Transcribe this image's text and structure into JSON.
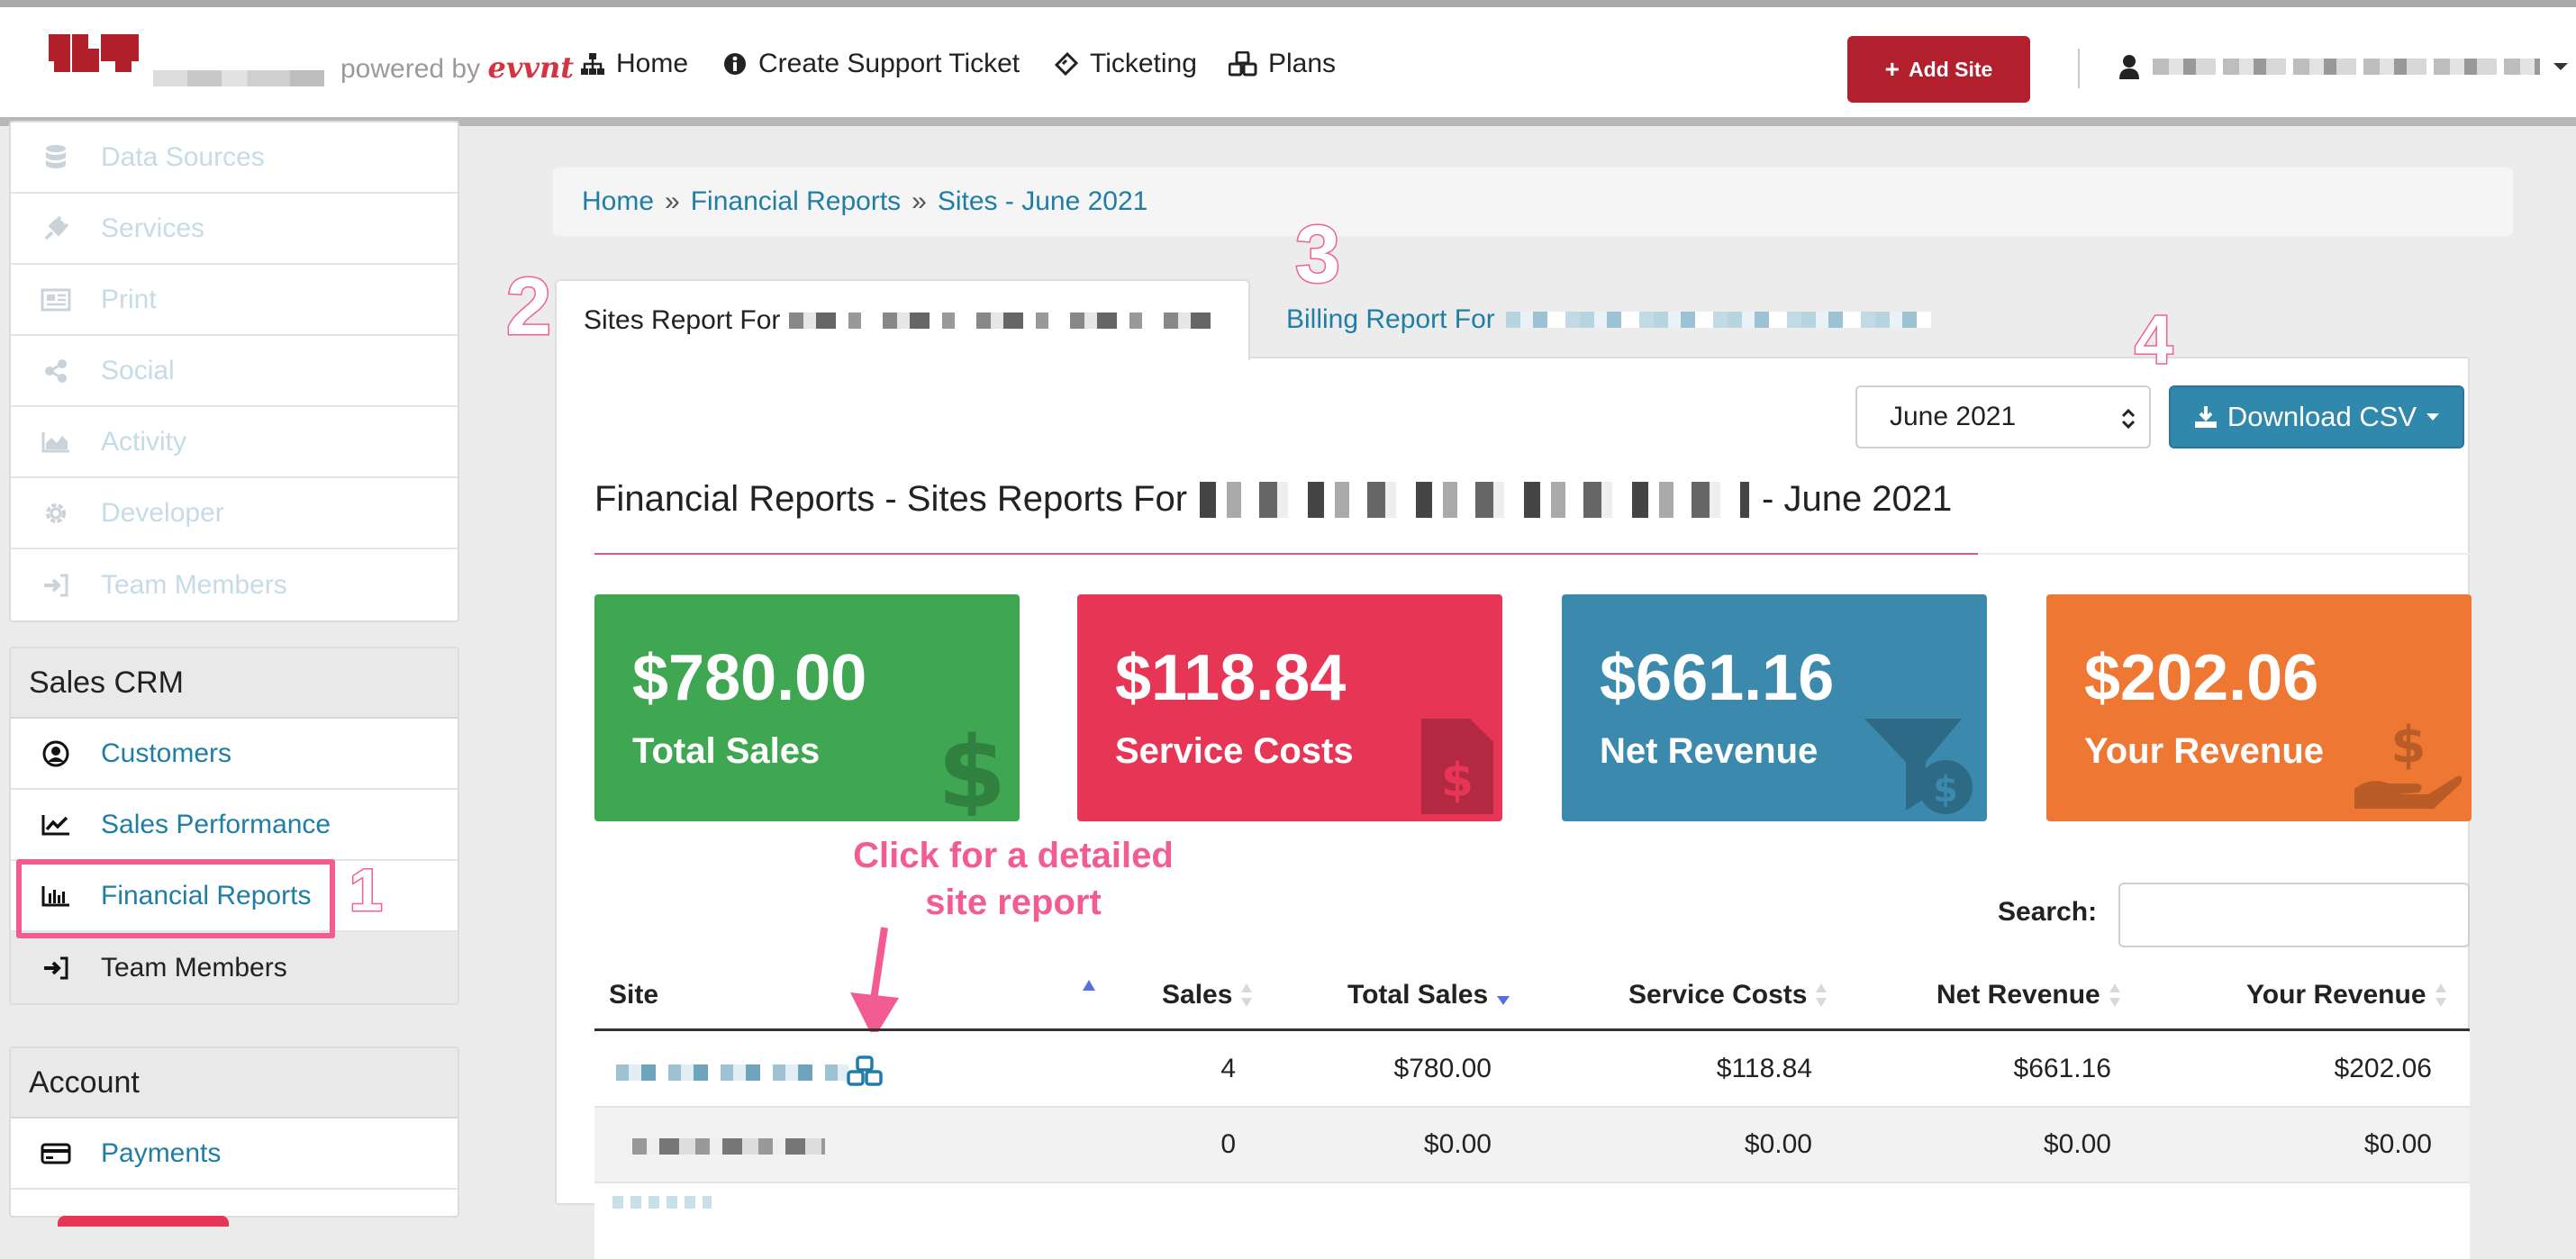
{
  "navbar": {
    "powered_prefix": "powered by",
    "powered_brand": "evvnt",
    "links": [
      {
        "label": "Home",
        "icon": "sitemap-icon"
      },
      {
        "label": "Create Support Ticket",
        "icon": "info-circle-icon"
      },
      {
        "label": "Ticketing",
        "icon": "ticket-icon"
      },
      {
        "label": "Plans",
        "icon": "cubes-icon"
      }
    ],
    "add_site_label": "Add Site",
    "accent": "#b3202d"
  },
  "sidebar": {
    "top_items": [
      {
        "label": "Data Sources",
        "icon": "database-icon"
      },
      {
        "label": "Services",
        "icon": "plug-icon"
      },
      {
        "label": "Print",
        "icon": "newspaper-icon"
      },
      {
        "label": "Social",
        "icon": "share-icon"
      },
      {
        "label": "Activity",
        "icon": "area-chart-icon"
      },
      {
        "label": "Developer",
        "icon": "gear-icon"
      },
      {
        "label": "Team Members",
        "icon": "sign-in-icon"
      }
    ],
    "sales_crm": {
      "heading": "Sales CRM",
      "items": [
        {
          "label": "Customers",
          "icon": "user-circle-icon"
        },
        {
          "label": "Sales Performance",
          "icon": "line-chart-icon"
        },
        {
          "label": "Financial Reports",
          "icon": "bar-chart-icon"
        },
        {
          "label": "Team Members",
          "icon": "sign-in-icon"
        }
      ]
    },
    "account": {
      "heading": "Account",
      "items": [
        {
          "label": "Payments",
          "icon": "credit-card-icon"
        }
      ]
    }
  },
  "annotations": {
    "step1": "1",
    "step2": "2",
    "step3": "3",
    "step4": "4",
    "hint_line1": "Click for a detailed",
    "hint_line2": "site report"
  },
  "breadcrumb": {
    "home": "Home",
    "sep": "»",
    "financial": "Financial Reports",
    "current": "Sites - June 2021"
  },
  "tabs": {
    "sites_prefix": "Sites Report For",
    "billing_prefix": "Billing Report For"
  },
  "controls": {
    "month_selected": "June 2021",
    "download_label": "Download CSV"
  },
  "report": {
    "title_prefix": "Financial Reports - Sites Reports For",
    "title_suffix": "- June 2021"
  },
  "cards": [
    {
      "amount": "$780.00",
      "label": "Total Sales",
      "color": "#3fa652",
      "icon": "dollar-icon"
    },
    {
      "amount": "$118.84",
      "label": "Service Costs",
      "color": "#e73556",
      "icon": "invoice-dollar-icon"
    },
    {
      "amount": "$661.16",
      "label": "Net Revenue",
      "color": "#3b89ad",
      "icon": "funnel-dollar-icon"
    },
    {
      "amount": "$202.06",
      "label": "Your Revenue",
      "color": "#ee7733",
      "icon": "hand-dollar-icon"
    }
  ],
  "table": {
    "search_label": "Search:",
    "columns": [
      "Site",
      "Sales",
      "Total Sales",
      "Service Costs",
      "Net Revenue",
      "Your Revenue"
    ],
    "rows": [
      {
        "sales": "4",
        "total_sales": "$780.00",
        "service_costs": "$118.84",
        "net_revenue": "$661.16",
        "your_revenue": "$202.06"
      },
      {
        "sales": "0",
        "total_sales": "$0.00",
        "service_costs": "$0.00",
        "net_revenue": "$0.00",
        "your_revenue": "$0.00"
      }
    ]
  }
}
